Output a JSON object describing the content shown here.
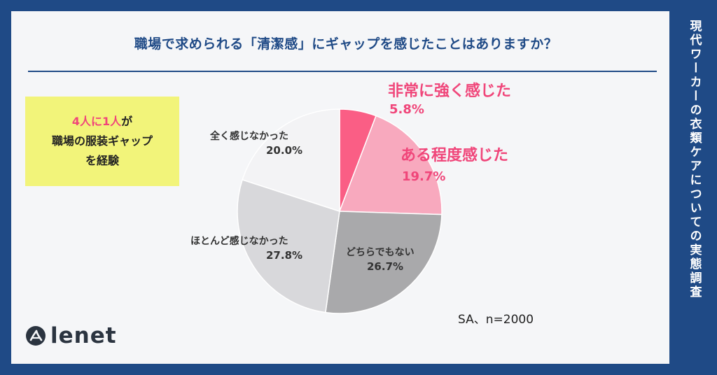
{
  "sidebar_text": "現代ワーカーの衣類ケアについての実態調査",
  "callout": {
    "line1_highlight": "4人に1人",
    "line1_rest": "が",
    "line2": "職場の服装ギャップ",
    "line3": "を経験"
  },
  "note": "SA、n=2000",
  "brand": {
    "name": "lenet",
    "logo_icon": "lenet-logo-icon"
  },
  "colors": {
    "navy": "#1f4a86",
    "accent_pink": "#f0467a"
  },
  "chart_data": {
    "type": "pie",
    "title": "職場で求められる「清潔感」にギャップを感じたことはありますか？",
    "slices": [
      {
        "label": "非常に強く感じた",
        "value": 5.8,
        "value_text": "5.8%",
        "color": "#fa5e85"
      },
      {
        "label": "ある程度感じた",
        "value": 19.7,
        "value_text": "19.7%",
        "color": "#f8a9be"
      },
      {
        "label": "どちらでもない",
        "value": 26.7,
        "value_text": "26.7%",
        "color": "#a9a9ab"
      },
      {
        "label": "ほとんど感じなかった",
        "value": 27.8,
        "value_text": "27.8%",
        "color": "#d8d8db"
      },
      {
        "label": "全く感じなかった",
        "value": 20.0,
        "value_text": "20.0%",
        "color": "#f3f3f5"
      }
    ],
    "start_angle": "12 o'clock",
    "direction": "clockwise"
  }
}
